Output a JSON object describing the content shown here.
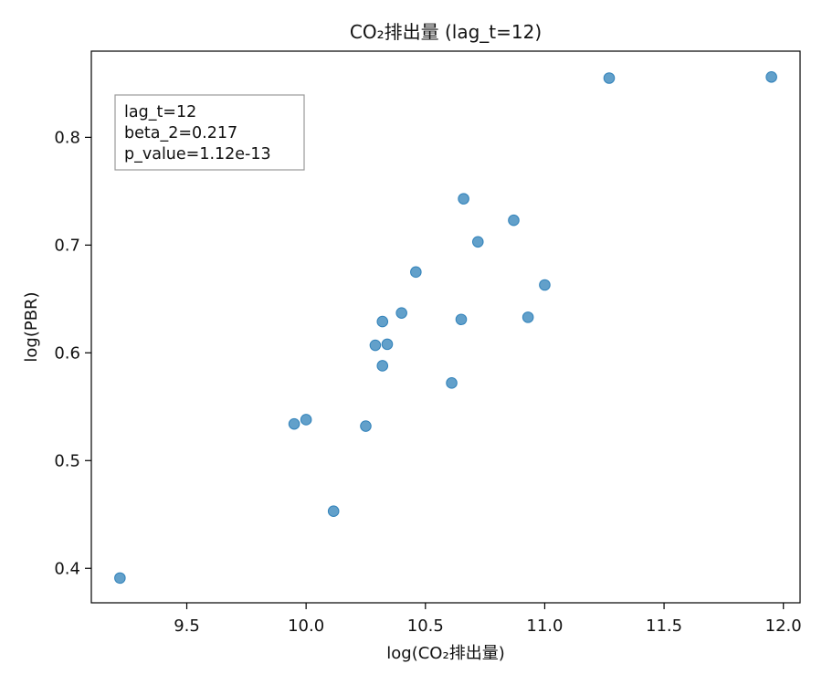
{
  "chart_data": {
    "type": "scatter",
    "title": "CO₂排出量 (lag_t=12)",
    "xlabel": "log(CO₂排出量)",
    "ylabel": "log(PBR)",
    "xlim": [
      9.1,
      12.07
    ],
    "ylim": [
      0.368,
      0.88
    ],
    "x_ticks": [
      9.5,
      10.0,
      10.5,
      11.0,
      11.5,
      12.0
    ],
    "x_tick_labels": [
      "9.5",
      "10.0",
      "10.5",
      "11.0",
      "11.5",
      "12.0"
    ],
    "y_ticks": [
      0.4,
      0.5,
      0.6,
      0.7,
      0.8
    ],
    "y_tick_labels": [
      "0.4",
      "0.5",
      "0.6",
      "0.7",
      "0.8"
    ],
    "grid": false,
    "point_color": "#1f77b4",
    "point_opacity": 0.7,
    "annotation": {
      "lines": [
        "lag_t=12",
        "beta_2=0.217",
        "p_value=1.12e-13"
      ],
      "placement": "top-left"
    },
    "points": [
      {
        "x": 9.22,
        "y": 0.391
      },
      {
        "x": 9.95,
        "y": 0.534
      },
      {
        "x": 10.0,
        "y": 0.538
      },
      {
        "x": 10.115,
        "y": 0.453
      },
      {
        "x": 10.25,
        "y": 0.532
      },
      {
        "x": 10.29,
        "y": 0.607
      },
      {
        "x": 10.32,
        "y": 0.588
      },
      {
        "x": 10.32,
        "y": 0.629
      },
      {
        "x": 10.34,
        "y": 0.608
      },
      {
        "x": 10.4,
        "y": 0.637
      },
      {
        "x": 10.46,
        "y": 0.675
      },
      {
        "x": 10.61,
        "y": 0.572
      },
      {
        "x": 10.65,
        "y": 0.631
      },
      {
        "x": 10.66,
        "y": 0.743
      },
      {
        "x": 10.72,
        "y": 0.703
      },
      {
        "x": 10.87,
        "y": 0.723
      },
      {
        "x": 10.93,
        "y": 0.633
      },
      {
        "x": 11.0,
        "y": 0.663
      },
      {
        "x": 11.27,
        "y": 0.855
      },
      {
        "x": 11.95,
        "y": 0.856
      }
    ]
  }
}
